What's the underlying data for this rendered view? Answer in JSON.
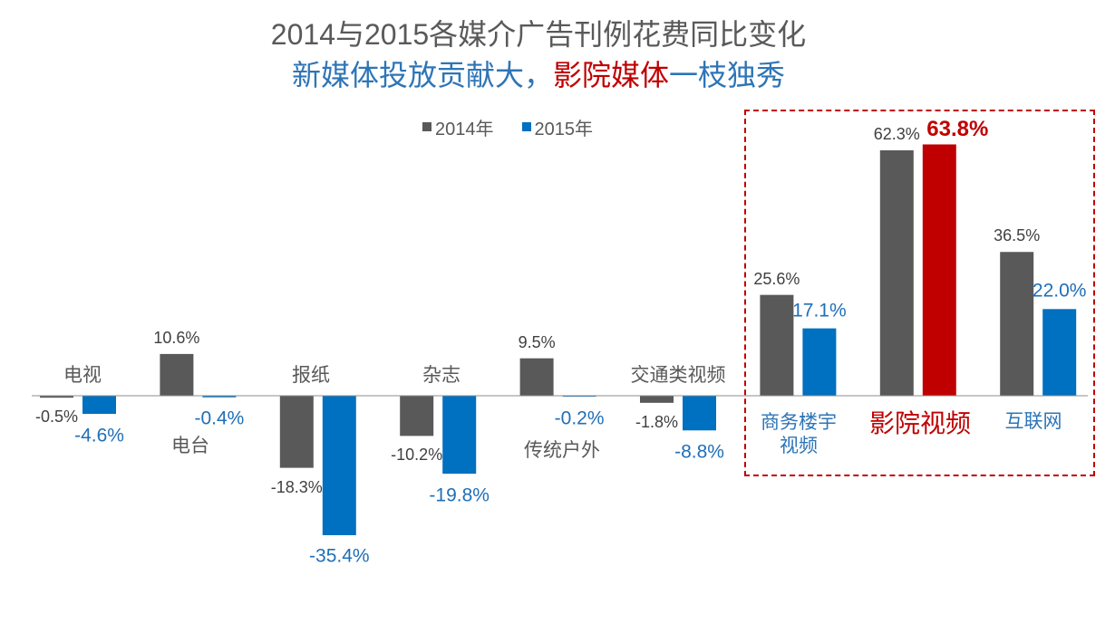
{
  "chart_data": {
    "type": "bar",
    "title": "2014与2015各媒介广告刊例花费同比变化",
    "subtitle_parts": [
      {
        "text": "新媒体投放贡献大，",
        "color": "#2E75B6"
      },
      {
        "text": "影院媒体",
        "color": "#C00000"
      },
      {
        "text": "一枝独秀",
        "color": "#2E75B6"
      }
    ],
    "categories": [
      "电视",
      "电台",
      "报纸",
      "杂志",
      "传统户外",
      "交通类视频",
      "商务楼宇视频",
      "影院视频",
      "互联网"
    ],
    "category_label_colors": [
      "#595959",
      "#595959",
      "#595959",
      "#595959",
      "#595959",
      "#595959",
      "#2E75B6",
      "#C00000",
      "#2E75B6"
    ],
    "series": [
      {
        "name": "2014年",
        "color": "#595959",
        "label_color": "#404040",
        "values": [
          -0.5,
          10.6,
          -18.3,
          -10.2,
          9.5,
          -1.8,
          25.6,
          62.3,
          36.5
        ],
        "data_labels": [
          "-0.5%",
          "10.6%",
          "-18.3%",
          "-10.2%",
          "9.5%",
          "-1.8%",
          "25.6%",
          "62.3%",
          "36.5%"
        ]
      },
      {
        "name": "2015年",
        "color": "#0070C0",
        "label_color": "#1F6FB7",
        "values": [
          -4.6,
          -0.4,
          -35.4,
          -19.8,
          -0.2,
          -8.8,
          17.1,
          63.8,
          22.0
        ],
        "data_labels": [
          "-4.6%",
          "-0.4%",
          "-35.4%",
          "-19.8%",
          "-0.2%",
          "-8.8%",
          "17.1%",
          "63.8%",
          "22.0%"
        ]
      }
    ],
    "highlight": {
      "series": 1,
      "index": 7,
      "color": "#C00000"
    },
    "highlight_box": {
      "from_index": 6,
      "to_index": 8,
      "color": "#C00000"
    },
    "ylim": [
      -40,
      70
    ],
    "grid": false,
    "legend_position": "top"
  }
}
